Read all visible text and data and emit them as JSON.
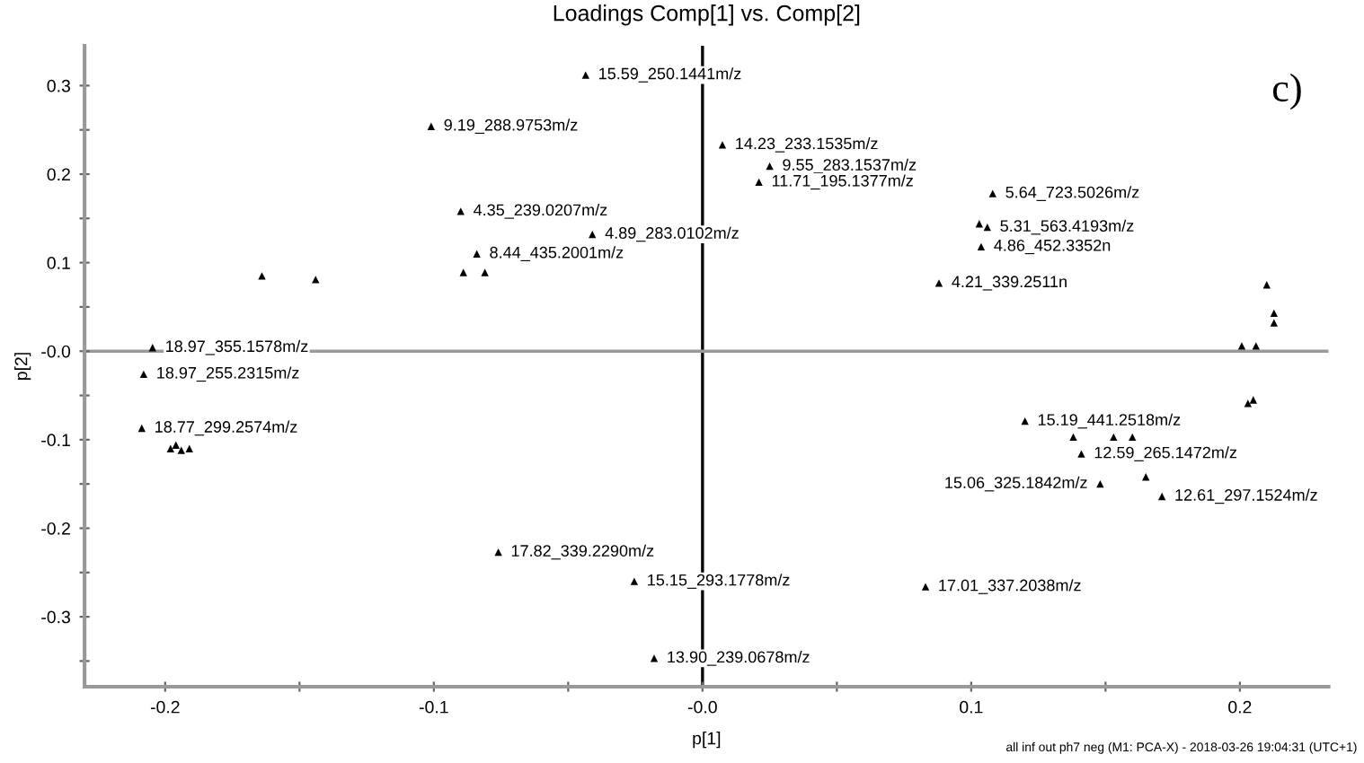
{
  "chart_data": {
    "type": "scatter",
    "title": "Loadings Comp[1] vs. Comp[2]",
    "xlabel": "p[1]",
    "ylabel": "p[2]",
    "xlim": [
      -0.23,
      0.233
    ],
    "ylim": [
      -0.379,
      0.345
    ],
    "xticks": [
      -0.2,
      {
        "value": -0.15,
        "label": null
      },
      -0.1,
      {
        "value": -0.05,
        "label": null
      },
      {
        "value": 0,
        "label": "-0.0"
      },
      {
        "value": 0.05,
        "label": null
      },
      0.1,
      {
        "value": 0.15,
        "label": null
      },
      0.2
    ],
    "yticks": [
      {
        "value": -0.35,
        "label": null
      },
      -0.3,
      {
        "value": -0.25,
        "label": null
      },
      -0.2,
      {
        "value": -0.15,
        "label": null
      },
      -0.1,
      {
        "value": -0.05,
        "label": null
      },
      {
        "value": 0,
        "label": "-0.0"
      },
      {
        "value": 0.05,
        "label": null
      },
      0.1,
      {
        "value": 0.15,
        "label": null
      },
      0.2,
      {
        "value": 0.25,
        "label": null
      },
      0.3
    ],
    "grid": false,
    "marker": "triangle",
    "series": [
      {
        "color": "#000000",
        "x": [
          -0.0435,
          -0.101,
          -0.09,
          -0.041,
          -0.084,
          -0.089,
          -0.081,
          -0.2047,
          -0.208,
          -0.2087,
          -0.198,
          -0.196,
          -0.194,
          -0.191,
          -0.164,
          -0.144,
          0.103,
          0.106,
          0.1037,
          0.088,
          0.108,
          0.0074,
          0.025,
          0.021,
          0.21,
          0.2127,
          0.2127,
          0.2007,
          0.206,
          0.203,
          0.205,
          0.12,
          0.138,
          0.153,
          0.16,
          0.141,
          0.148,
          0.165,
          0.171,
          -0.076,
          -0.0254,
          -0.018,
          0.083
        ],
        "values": [
          0.312,
          0.254,
          0.158,
          0.132,
          0.11,
          0.089,
          0.089,
          0.004,
          -0.026,
          -0.087,
          -0.11,
          -0.106,
          -0.112,
          -0.11,
          0.085,
          0.081,
          0.144,
          0.14,
          0.118,
          0.077,
          0.178,
          0.233,
          0.209,
          0.191,
          0.075,
          0.043,
          0.032,
          0.006,
          0.006,
          -0.059,
          -0.055,
          -0.079,
          -0.097,
          -0.097,
          -0.097,
          -0.116,
          -0.15,
          -0.142,
          -0.164,
          -0.227,
          -0.26,
          -0.347,
          -0.266
        ]
      }
    ],
    "ref_lines": [
      {
        "axis": "x",
        "value": 0,
        "color": "#000000"
      },
      {
        "axis": "y",
        "value": 0,
        "color": "#9a9a9a"
      }
    ],
    "annotations": [
      {
        "text": "15.59_250.1441m/z",
        "x": -0.0435,
        "y": 0.312
      },
      {
        "text": "9.19_288.9753m/z",
        "x": -0.101,
        "y": 0.254
      },
      {
        "text": "4.35_239.0207m/z",
        "x": -0.09,
        "y": 0.158
      },
      {
        "text": "4.89_283.0102m/z",
        "x": -0.041,
        "y": 0.132
      },
      {
        "text": "8.44_435.2001m/z",
        "x": -0.084,
        "y": 0.11
      },
      {
        "text": "18.97_355.1578m/z",
        "x": -0.2047,
        "y": 0.004
      },
      {
        "text": "18.97_255.2315m/z",
        "x": -0.208,
        "y": -0.026
      },
      {
        "text": "18.77_299.2574m/z",
        "x": -0.2087,
        "y": -0.087
      },
      {
        "text": "5.31_563.4193m/z",
        "x": 0.106,
        "y": 0.14
      },
      {
        "text": "4.86_452.3352n",
        "x": 0.1037,
        "y": 0.118
      },
      {
        "text": "4.21_339.2511n",
        "x": 0.088,
        "y": 0.077
      },
      {
        "text": "5.64_723.5026m/z",
        "x": 0.108,
        "y": 0.178
      },
      {
        "text": "14.23_233.1535m/z",
        "x": 0.0074,
        "y": 0.233
      },
      {
        "text": "9.55_283.1537m/z",
        "x": 0.025,
        "y": 0.209
      },
      {
        "text": "11.71_195.1377m/z",
        "x": 0.021,
        "y": 0.191
      },
      {
        "text": "15.19_441.2518m/z",
        "x": 0.12,
        "y": -0.079
      },
      {
        "text": "12.59_265.1472m/z",
        "x": 0.141,
        "y": -0.116
      },
      {
        "text": "15.06_325.1842m/z",
        "x": 0.148,
        "y": -0.15
      },
      {
        "text": "12.61_297.1524m/z",
        "x": 0.171,
        "y": -0.164
      },
      {
        "text": "17.82_339.2290m/z",
        "x": -0.076,
        "y": -0.227
      },
      {
        "text": "15.15_293.1778m/z",
        "x": -0.0254,
        "y": -0.26
      },
      {
        "text": "13.90_239.0678m/z",
        "x": -0.018,
        "y": -0.347
      },
      {
        "text": "17.01_337.2038m/z",
        "x": 0.083,
        "y": -0.266
      },
      "c)",
      "all inf out ph7 neg (M1: PCA-X) - 2018-03-26 19:04:31 (UTC+1)"
    ]
  }
}
